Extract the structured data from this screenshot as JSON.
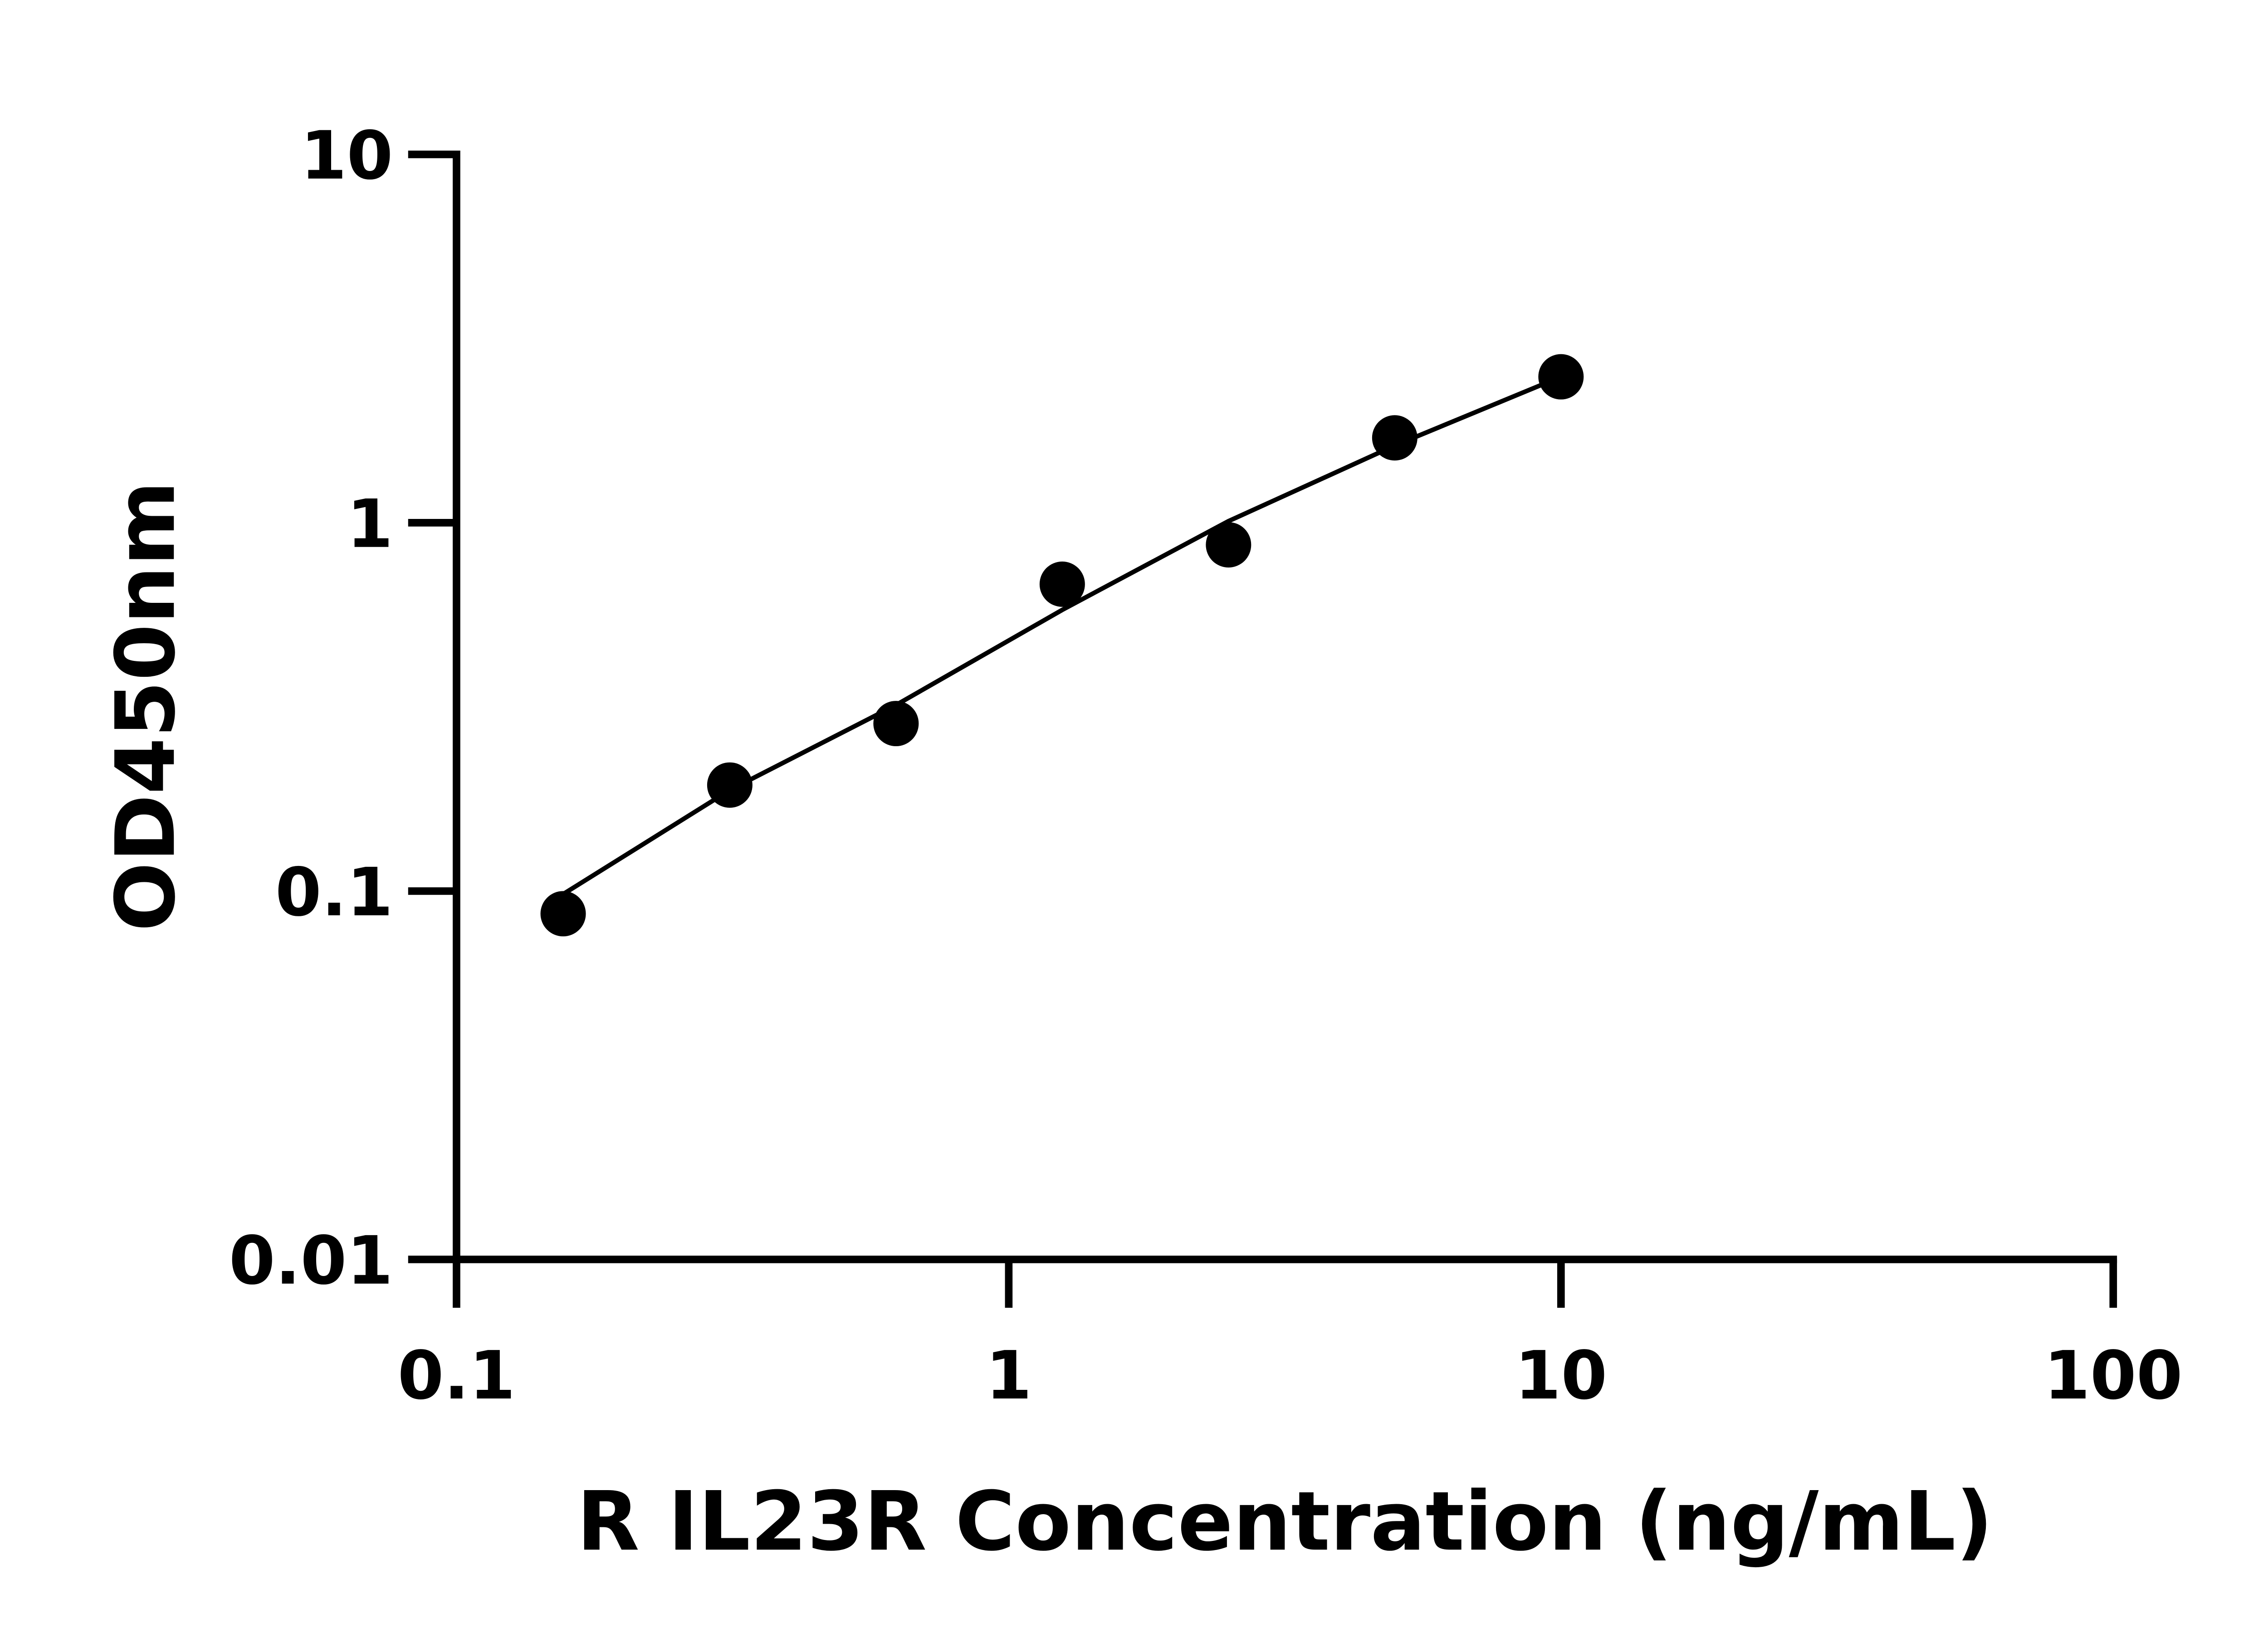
{
  "chart_data": {
    "type": "scatter",
    "x_label": "R IL23R Concentration (ng/mL)",
    "y_label": "OD450nm",
    "x": [
      0.156,
      0.3125,
      0.625,
      1.25,
      2.5,
      5,
      10
    ],
    "series": [
      {
        "color": "#000000",
        "values": [
          0.0868,
          0.194,
          0.285,
          0.681,
          0.871,
          1.7,
          2.49
        ]
      }
    ],
    "fit_curve": {
      "x": [
        0.156,
        0.3125,
        0.625,
        1.25,
        2.5,
        5,
        10
      ],
      "values": [
        0.0981,
        0.188,
        0.32,
        0.58,
        1.01,
        1.62,
        2.49
      ],
      "color": "#000000"
    },
    "xscale": "log",
    "yscale": "log",
    "xlim": [
      0.1,
      100
    ],
    "ylim": [
      0.01,
      10
    ],
    "xticks": [
      0.1,
      1,
      10,
      100
    ],
    "yticks": [
      0.01,
      0.1,
      1,
      10
    ],
    "grid": false
  }
}
